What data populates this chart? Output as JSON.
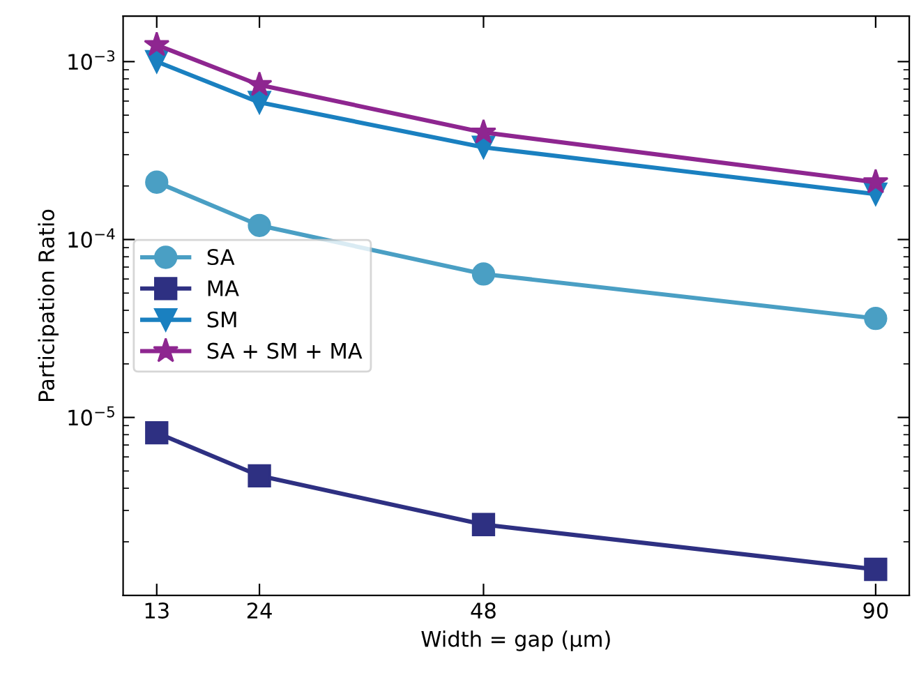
{
  "chart_data": {
    "type": "line",
    "xlabel": "Width = gap (µm)",
    "ylabel": "Participation Ratio",
    "x": [
      13,
      24,
      48,
      90
    ],
    "series": [
      {
        "name": "SA",
        "color": "#4a9fc4",
        "marker": "circle",
        "values": [
          0.00021,
          0.00012,
          6.4e-05,
          3.6e-05
        ]
      },
      {
        "name": "MA",
        "color": "#2e3082",
        "marker": "square",
        "values": [
          8.2e-06,
          4.7e-06,
          2.5e-06,
          1.4e-06
        ]
      },
      {
        "name": "SM",
        "color": "#1a80c0",
        "marker": "triangle",
        "values": [
          0.001,
          0.00059,
          0.00033,
          0.00018
        ]
      },
      {
        "name": "SA + SM + MA",
        "color": "#8e2690",
        "marker": "star",
        "values": [
          0.00124,
          0.00074,
          0.0004,
          0.00021
        ]
      }
    ],
    "log": "y",
    "xlim": [
      9.4,
      93.6
    ],
    "ylim": [
      1e-06,
      0.0018
    ],
    "xticks": [
      13,
      24,
      48,
      90
    ],
    "yticks": [
      {
        "value": 0.001,
        "label": "10$^{−3}$"
      },
      {
        "value": 0.0001,
        "label": "10$^{−4}$"
      },
      {
        "value": 1e-05,
        "label": "10$^{−5}$"
      }
    ],
    "legend": "center left",
    "grid": false,
    "line_style": "solid"
  }
}
